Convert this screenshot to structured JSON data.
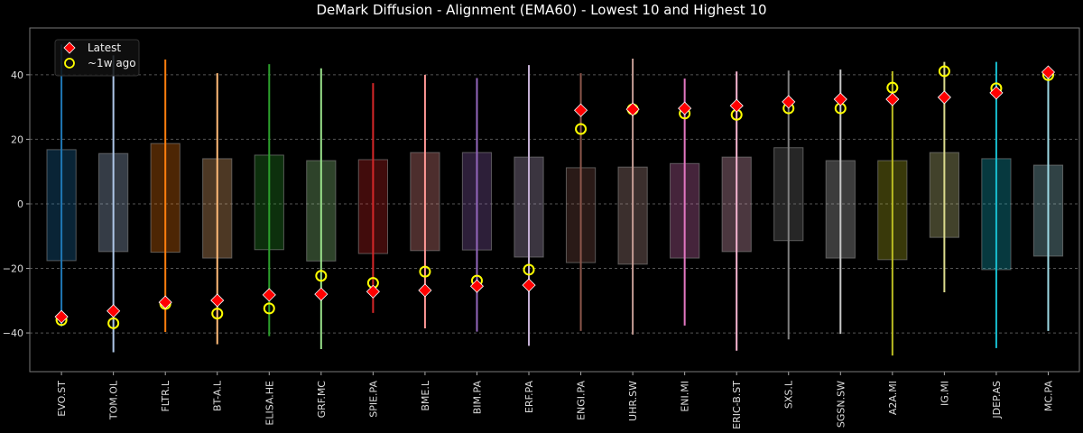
{
  "chart_data": {
    "type": "box-range",
    "title": "DeMark Diffusion - Alignment (EMA60) - Lowest 10 and Highest 10",
    "xlabel": "",
    "ylabel": "",
    "ylim": [
      -52,
      54.5
    ],
    "yticks": [
      -40,
      -20,
      0,
      20,
      40
    ],
    "grid": true,
    "legend_position": "top-left",
    "legend": [
      {
        "label": "Latest",
        "marker": "red-diamond"
      },
      {
        "label": "~1w ago",
        "marker": "yellow-circle"
      }
    ],
    "marker_colors": {
      "latest": "#ff0000",
      "prev": "#ffff00"
    },
    "categories": [
      "EVO.ST",
      "TOM.OL",
      "FLTR.L",
      "BT-A.L",
      "ELISA.HE",
      "GRF.MC",
      "SPIE.PA",
      "BME.L",
      "BIM.PA",
      "ERF.PA",
      "ENGI.PA",
      "UHR.SW",
      "ENI.MI",
      "ERIC-B.ST",
      "SXS.L",
      "SGSN.SW",
      "A2A.MI",
      "IG.MI",
      "JDEP.AS",
      "MC.PA"
    ],
    "colors": [
      "#1f77b4",
      "#aec7e8",
      "#ff7f0e",
      "#ffbb78",
      "#2ca02c",
      "#98df8a",
      "#d62728",
      "#ff9896",
      "#9467bd",
      "#c5b0d5",
      "#8c564b",
      "#c49c94",
      "#e377c2",
      "#f7b6d2",
      "#7f7f7f",
      "#c7c7c7",
      "#bcbd22",
      "#dbdb8d",
      "#17becf",
      "#9edae5"
    ],
    "whisker_low": [
      -38,
      -46,
      -39.7,
      -43.5,
      -41,
      -45,
      -33.8,
      -38.6,
      -39.6,
      -44,
      -39.4,
      -40.5,
      -37.7,
      -45.5,
      -42,
      -40.3,
      -47,
      -27.4,
      -44.7,
      -39.4
    ],
    "whisker_high": [
      49.4,
      46,
      44.7,
      40.5,
      43.3,
      42,
      37.4,
      40,
      39,
      43,
      40.5,
      45,
      38.8,
      41,
      41.3,
      41.6,
      41.1,
      44,
      44,
      41
    ],
    "box_low": [
      -17.6,
      -14.8,
      -15,
      -16.8,
      -14.2,
      -17.7,
      -15.4,
      -14.5,
      -14.3,
      -16.5,
      -18.2,
      -18.7,
      -16.8,
      -14.8,
      -11.4,
      -16.8,
      -17.3,
      -10.4,
      -20.4,
      -16.2
    ],
    "box_high": [
      16.8,
      15.6,
      18.7,
      14,
      15.1,
      13.4,
      13.7,
      15.9,
      15.9,
      14.5,
      11.2,
      11.4,
      12.5,
      14.5,
      17.4,
      13.4,
      13.4,
      15.9,
      14,
      12
    ],
    "latest": [
      -35,
      -33.2,
      -30.5,
      -29.9,
      -28.2,
      -28,
      -27.2,
      -26.8,
      -25.5,
      -25.2,
      29,
      29.3,
      29.6,
      30.4,
      31.6,
      32.4,
      32.4,
      33,
      34.4,
      40.8
    ],
    "prev": [
      -36,
      -37,
      -31,
      -34,
      -32.4,
      -22.3,
      -24.5,
      -21,
      -23.8,
      -20.4,
      23.2,
      29.3,
      28,
      27.6,
      29.6,
      29.6,
      36,
      41.1,
      35.8,
      39.9
    ]
  }
}
